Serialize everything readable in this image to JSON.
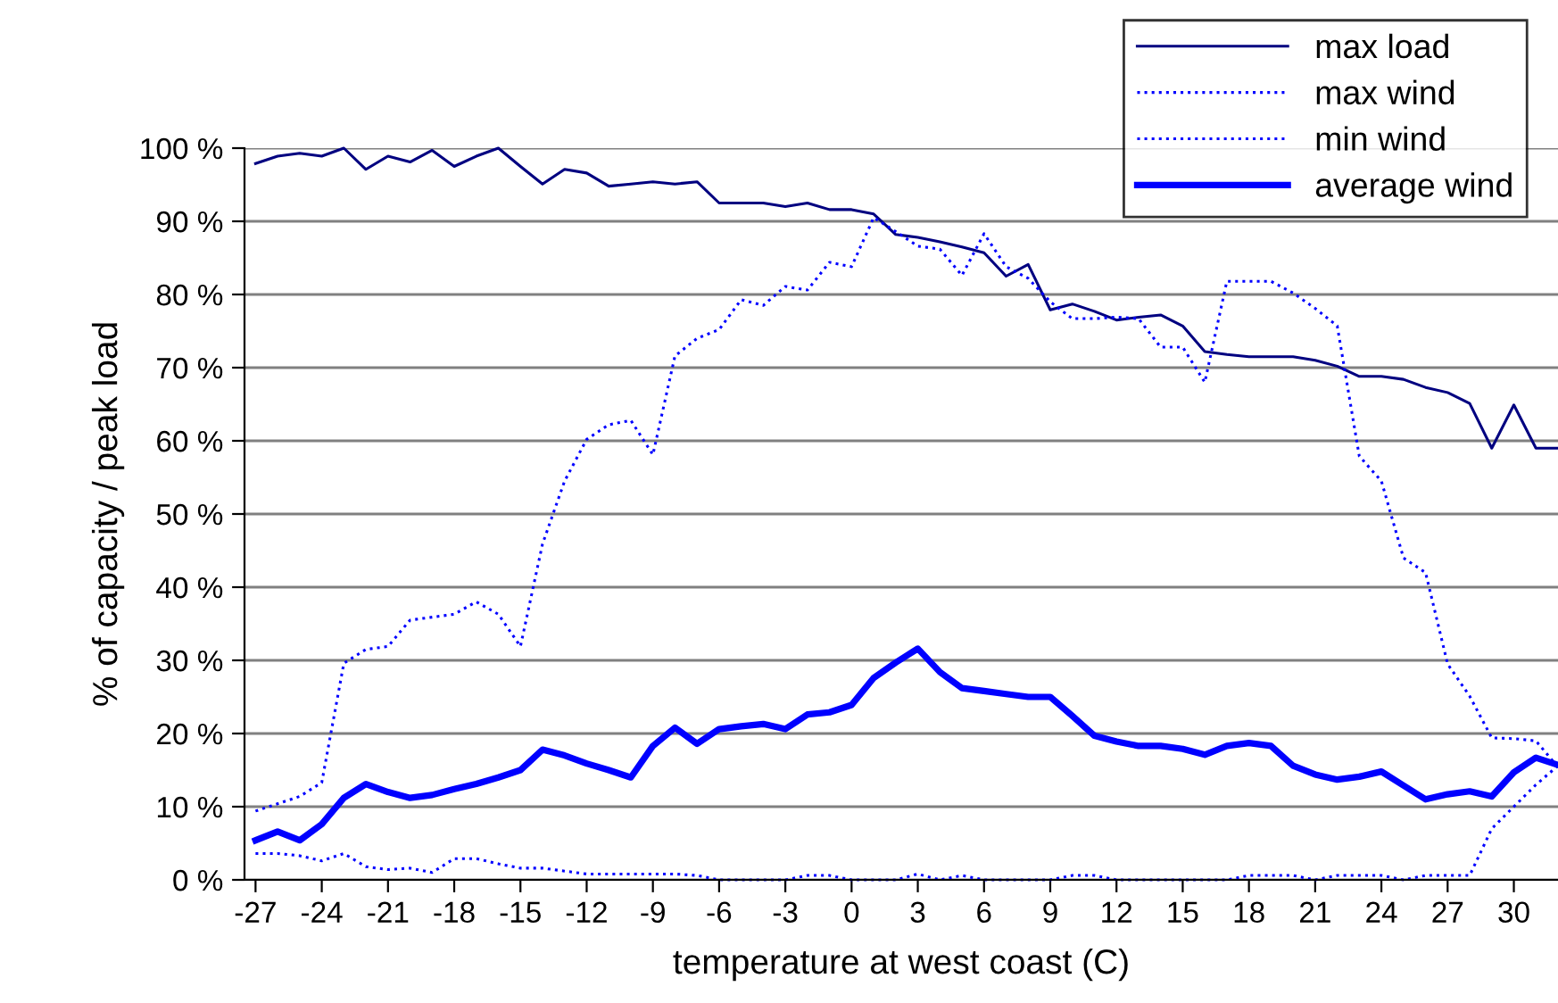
{
  "chart_data": {
    "type": "line",
    "xlabel": "temperature at west coast (C)",
    "ylabel": "% of capacity / peak load",
    "x": [
      -27,
      -26,
      -25,
      -24,
      -23,
      -22,
      -21,
      -20,
      -19,
      -18,
      -17,
      -16,
      -15,
      -14,
      -13,
      -12,
      -11,
      -10,
      -9,
      -8,
      -7,
      -6,
      -5,
      -4,
      -3,
      -2,
      -1,
      0,
      1,
      2,
      3,
      4,
      5,
      6,
      7,
      8,
      9,
      10,
      11,
      12,
      13,
      14,
      15,
      16,
      17,
      18,
      19,
      20,
      21,
      22,
      23,
      24,
      25,
      26,
      27,
      28,
      29,
      30,
      31,
      32
    ],
    "series": [
      {
        "name": "max load",
        "color": "#000080",
        "line_style": "solid",
        "values": [
          97.9,
          98.9,
          99.3,
          98.9,
          100,
          97.1,
          98.9,
          98.1,
          99.7,
          97.5,
          98.9,
          100,
          97.5,
          95.1,
          97.1,
          96.6,
          94.8,
          95.1,
          95.4,
          95.1,
          95.4,
          92.5,
          92.5,
          92.5,
          92.0,
          92.5,
          91.6,
          91.6,
          91.0,
          88.2,
          87.8,
          87.2,
          86.5,
          85.7,
          82.5,
          84.1,
          77.9,
          78.7,
          77.7,
          76.5,
          76.9,
          77.2,
          75.7,
          72.2,
          71.8,
          71.5,
          71.5,
          71.5,
          71.0,
          70.2,
          68.8,
          68.8,
          68.4,
          67.3,
          66.6,
          65.1,
          59.0,
          64.9,
          59.0,
          59.0
        ]
      },
      {
        "name": "max wind",
        "color": "#0000ff",
        "line_style": "dotted",
        "values": [
          9.4,
          10.4,
          11.4,
          13.3,
          29.6,
          31.5,
          31.9,
          35.5,
          35.9,
          36.3,
          38.0,
          36.3,
          31.9,
          45.9,
          54.5,
          60.2,
          62.2,
          62.8,
          58.1,
          71.6,
          74.0,
          75.2,
          79.3,
          78.5,
          81.1,
          80.6,
          84.4,
          83.8,
          90.5,
          88.6,
          86.6,
          86.2,
          82.6,
          88.3,
          83.8,
          82.2,
          79.0,
          76.7,
          76.7,
          76.9,
          76.7,
          72.8,
          72.8,
          68.0,
          81.8,
          81.8,
          81.8,
          80.2,
          78.1,
          75.7,
          57.9,
          54.5,
          44,
          42,
          29.5,
          25.1,
          19.4,
          19.3,
          19.0,
          15.4
        ]
      },
      {
        "name": "min wind",
        "color": "#0000ff",
        "line_style": "dotted",
        "values": [
          3.6,
          3.6,
          3.3,
          2.6,
          3.6,
          1.8,
          1.4,
          1.6,
          1.0,
          2.9,
          2.9,
          2.2,
          1.6,
          1.6,
          1.2,
          0.8,
          0.8,
          0.8,
          0.8,
          0.8,
          0.6,
          0,
          0,
          0,
          0,
          0.6,
          0.6,
          0,
          0,
          0,
          0.8,
          0,
          0.6,
          0,
          0,
          0,
          0,
          0.6,
          0.6,
          0,
          0,
          0,
          0,
          0,
          0,
          0.6,
          0.6,
          0.6,
          0,
          0.6,
          0.6,
          0.6,
          0,
          0.6,
          0.6,
          0.6,
          7,
          10,
          13,
          15.6
        ]
      },
      {
        "name": "average wind",
        "color": "#0000ff",
        "line_style": "solid",
        "values": [
          5.4,
          6.6,
          5.4,
          7.6,
          11.2,
          13.1,
          12.0,
          11.2,
          11.6,
          12.4,
          13.1,
          14.0,
          15.0,
          17.8,
          17.0,
          15.9,
          15.0,
          14.0,
          18.3,
          20.8,
          18.6,
          20.6,
          21.0,
          21.3,
          20.6,
          22.6,
          22.9,
          23.9,
          27.6,
          29.7,
          31.6,
          28.4,
          26.2,
          25.8,
          25.4,
          25.0,
          25.0,
          22.4,
          19.7,
          18.9,
          18.3,
          18.3,
          17.9,
          17.1,
          18.3,
          18.7,
          18.3,
          15.6,
          14.4,
          13.7,
          14.1,
          14.8,
          12.9,
          11.0,
          11.7,
          12.1,
          11.4,
          14.7,
          16.7,
          15.7
        ]
      }
    ],
    "xlim": [
      -27.5,
      32
    ],
    "xticks": [
      -27,
      -24,
      -21,
      -18,
      -15,
      -12,
      -9,
      -6,
      -3,
      0,
      3,
      6,
      9,
      12,
      15,
      18,
      21,
      24,
      27,
      30
    ],
    "ylim": [
      0,
      100
    ],
    "yticks": [
      {
        "value": 0,
        "label": "0 %"
      },
      {
        "value": 10,
        "label": "10 %"
      },
      {
        "value": 20,
        "label": "20 %"
      },
      {
        "value": 30,
        "label": "30 %"
      },
      {
        "value": 40,
        "label": "40 %"
      },
      {
        "value": 50,
        "label": "50 %"
      },
      {
        "value": 60,
        "label": "60 %"
      },
      {
        "value": 70,
        "label": "70 %"
      },
      {
        "value": 80,
        "label": "80 %"
      },
      {
        "value": 90,
        "label": "90 %"
      },
      {
        "value": 100,
        "label": "100 %"
      }
    ],
    "grid": "y",
    "legend": "top right",
    "marker": "none"
  }
}
